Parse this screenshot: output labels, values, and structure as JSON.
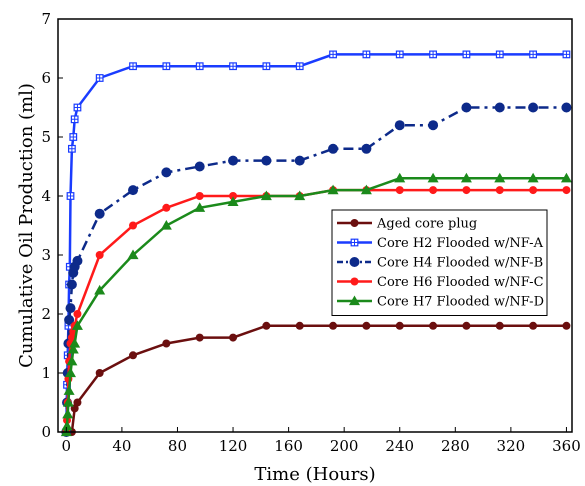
{
  "chart_data": {
    "type": "line",
    "title": "",
    "xlabel": "Time (Hours)",
    "ylabel": "Cumulative Oil Production (ml)",
    "xlim": [
      -6,
      364
    ],
    "ylim": [
      0,
      7
    ],
    "xticks": [
      0,
      40,
      80,
      120,
      160,
      200,
      240,
      280,
      320,
      360
    ],
    "yticks": [
      0,
      1,
      2,
      3,
      4,
      5,
      6,
      7
    ],
    "grid": false,
    "legend_position": "center-right",
    "series": [
      {
        "name": "Aged  core plug",
        "color": "#6b0f0f",
        "marker": "circle",
        "line": "solid",
        "x": [
          0,
          1,
          2,
          3,
          4,
          6,
          8,
          24,
          48,
          72,
          96,
          120,
          144,
          168,
          192,
          216,
          240,
          264,
          288,
          312,
          336,
          360
        ],
        "y": [
          0,
          0,
          0,
          0,
          0,
          0.4,
          0.5,
          1.0,
          1.3,
          1.5,
          1.6,
          1.6,
          1.8,
          1.8,
          1.8,
          1.8,
          1.8,
          1.8,
          1.8,
          1.8,
          1.8,
          1.8
        ]
      },
      {
        "name": "Core H2 Flooded w/NF-A",
        "color": "#1a3cff",
        "marker": "square-plus",
        "line": "solid",
        "x": [
          0,
          0.5,
          1,
          1.5,
          2,
          2.5,
          3,
          4,
          5,
          6,
          8,
          24,
          48,
          72,
          96,
          120,
          144,
          168,
          192,
          216,
          240,
          264,
          288,
          312,
          336,
          360
        ],
        "y": [
          0,
          0.8,
          1.3,
          1.8,
          2.5,
          2.8,
          4.0,
          4.8,
          5.0,
          5.3,
          5.5,
          6.0,
          6.2,
          6.2,
          6.2,
          6.2,
          6.2,
          6.2,
          6.4,
          6.4,
          6.4,
          6.4,
          6.4,
          6.4,
          6.4,
          6.4
        ]
      },
      {
        "name": "Core H4 Flooded w/NF-B",
        "color": "#0d2a8a",
        "marker": "circle",
        "line": "dash-dot",
        "x": [
          0,
          0.5,
          1,
          1.5,
          2,
          3,
          4,
          5,
          6,
          8,
          24,
          48,
          72,
          96,
          120,
          144,
          168,
          192,
          216,
          240,
          264,
          288,
          312,
          336,
          360
        ],
        "y": [
          0,
          0.5,
          1.0,
          1.5,
          1.9,
          2.1,
          2.5,
          2.7,
          2.8,
          2.9,
          3.7,
          4.1,
          4.4,
          4.5,
          4.6,
          4.6,
          4.6,
          4.8,
          4.8,
          5.2,
          5.2,
          5.5,
          5.5,
          5.5,
          5.5
        ]
      },
      {
        "name": "Core H6 Flooded w/NF-C",
        "color": "#ff1a1a",
        "marker": "circle",
        "line": "solid",
        "x": [
          0,
          0.5,
          1,
          1.5,
          2,
          3,
          4,
          5,
          6,
          8,
          24,
          48,
          72,
          96,
          120,
          144,
          168,
          192,
          216,
          240,
          264,
          288,
          312,
          336,
          360
        ],
        "y": [
          0,
          0.2,
          0.5,
          0.9,
          1.2,
          1.5,
          1.6,
          1.7,
          1.8,
          2.0,
          3.0,
          3.5,
          3.8,
          4.0,
          4.0,
          4.0,
          4.0,
          4.1,
          4.1,
          4.1,
          4.1,
          4.1,
          4.1,
          4.1,
          4.1
        ]
      },
      {
        "name": "Core H7 Flooded w/NF-D",
        "color": "#1b8a1b",
        "marker": "triangle",
        "line": "solid",
        "x": [
          0,
          0.5,
          1,
          1.5,
          2,
          3,
          4,
          5,
          6,
          8,
          24,
          48,
          72,
          96,
          120,
          144,
          168,
          192,
          216,
          240,
          264,
          288,
          312,
          336,
          360
        ],
        "y": [
          0,
          0.1,
          0.3,
          0.5,
          0.7,
          1.0,
          1.2,
          1.4,
          1.5,
          1.8,
          2.4,
          3.0,
          3.5,
          3.8,
          3.9,
          4.0,
          4.0,
          4.1,
          4.1,
          4.3,
          4.3,
          4.3,
          4.3,
          4.3,
          4.3
        ]
      }
    ]
  }
}
